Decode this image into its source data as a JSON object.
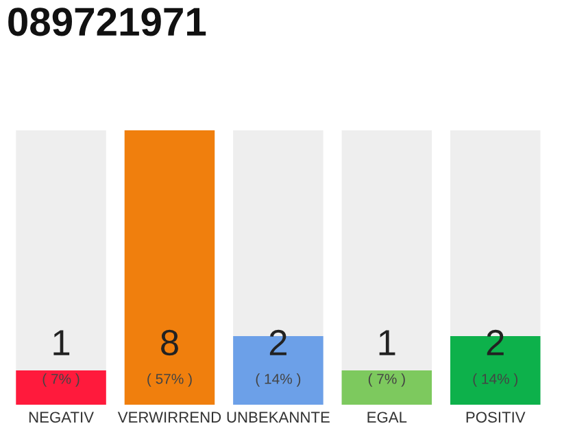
{
  "chart_data": {
    "type": "bar",
    "title": "089721971",
    "categories": [
      "NEGATIV",
      "VERWIRREND",
      "UNBEKANNTE",
      "EGAL",
      "POSITIV"
    ],
    "values": [
      1,
      8,
      2,
      1,
      2
    ],
    "colors": [
      "#ff1a3c",
      "#f07f0d",
      "#6ca0e8",
      "#7dc95e",
      "#0db14b"
    ],
    "ylim": [
      0,
      8
    ],
    "data_labels": true,
    "annotations": [
      "( 7% )",
      "( 57% )",
      "( 14% )",
      "( 7% )",
      "( 14% )"
    ],
    "tick_labels": "x",
    "grid": false,
    "legend": false
  }
}
